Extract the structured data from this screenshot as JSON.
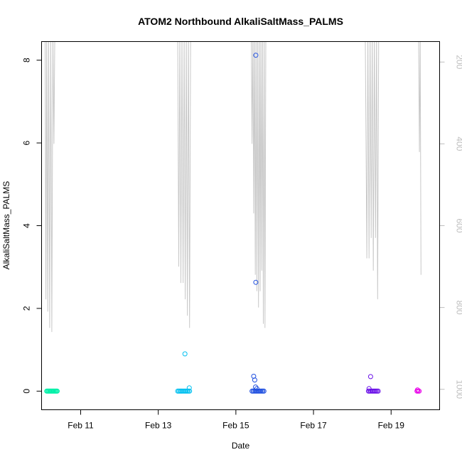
{
  "chart_data": {
    "type": "scatter",
    "title": "ATOM2 Northbound AlkaliSaltMass_PALMS",
    "xlabel": "Date",
    "ylabel": "AlkaliSaltMass_PALMS",
    "x_ticks": [
      "Feb 11",
      "Feb 13",
      "Feb 15",
      "Feb 17",
      "Feb 19"
    ],
    "y_ticks": [
      "0",
      "2",
      "4",
      "6",
      "8"
    ],
    "y2_ticks": [
      "200",
      "400",
      "600",
      "800",
      "1000"
    ],
    "xlim": [
      "Feb 9 23:50",
      "Feb 20 06:00"
    ],
    "ylim": [
      -0.45,
      8.45
    ],
    "y2lim": [
      1050,
      150
    ],
    "y2_reversed": true,
    "y2_series_color": "#c8c8c8",
    "point_colors": {
      "flight1": "#00f0a8",
      "flight2": "#00c0f0",
      "flight3": "#2050e0",
      "flight4": "#6a10e8",
      "flight5": "#e800e8"
    },
    "series": [
      {
        "color_key": "flight1",
        "points": [
          [
            "Feb 10 03:00",
            0
          ],
          [
            "Feb 10 03:30",
            0
          ],
          [
            "Feb 10 04:00",
            0
          ],
          [
            "Feb 10 04:30",
            0
          ],
          [
            "Feb 10 05:00",
            0
          ],
          [
            "Feb 10 05:30",
            0
          ],
          [
            "Feb 10 06:00",
            0
          ],
          [
            "Feb 10 06:30",
            0
          ],
          [
            "Feb 10 07:00",
            0
          ],
          [
            "Feb 10 07:30",
            0
          ],
          [
            "Feb 10 08:00",
            0
          ],
          [
            "Feb 10 08:30",
            0
          ],
          [
            "Feb 10 09:00",
            0
          ],
          [
            "Feb 10 09:30",
            0
          ]
        ]
      },
      {
        "color_key": "flight2",
        "points": [
          [
            "Feb 13 12:00",
            0
          ],
          [
            "Feb 13 12:40",
            0
          ],
          [
            "Feb 13 13:20",
            0
          ],
          [
            "Feb 13 14:00",
            0
          ],
          [
            "Feb 13 14:40",
            0
          ],
          [
            "Feb 13 15:20",
            0
          ],
          [
            "Feb 13 16:00",
            0
          ],
          [
            "Feb 13 16:40",
            0
          ],
          [
            "Feb 13 17:20",
            0
          ],
          [
            "Feb 13 18:00",
            0
          ],
          [
            "Feb 13 18:40",
            0
          ],
          [
            "Feb 13 19:20",
            0
          ],
          [
            "Feb 13 16:30",
            0.9
          ],
          [
            "Feb 13 19:10",
            0.08
          ]
        ]
      },
      {
        "color_key": "flight3",
        "points": [
          [
            "Feb 15 10:00",
            0
          ],
          [
            "Feb 15 10:40",
            0
          ],
          [
            "Feb 15 11:20",
            0
          ],
          [
            "Feb 15 12:00",
            0
          ],
          [
            "Feb 15 12:40",
            0
          ],
          [
            "Feb 15 13:20",
            0
          ],
          [
            "Feb 15 14:00",
            0
          ],
          [
            "Feb 15 14:40",
            0
          ],
          [
            "Feb 15 15:20",
            0
          ],
          [
            "Feb 15 16:00",
            0
          ],
          [
            "Feb 15 16:40",
            0
          ],
          [
            "Feb 15 17:20",
            0
          ],
          [
            "Feb 15 11:00",
            0.36
          ],
          [
            "Feb 15 11:40",
            0.27
          ],
          [
            "Feb 15 12:10",
            0.1
          ],
          [
            "Feb 15 13:00",
            0.06
          ],
          [
            "Feb 15 12:20",
            8.12
          ],
          [
            "Feb 15 12:20",
            2.63
          ]
        ]
      },
      {
        "color_key": "flight4",
        "points": [
          [
            "Feb 18 10:00",
            0
          ],
          [
            "Feb 18 10:40",
            0
          ],
          [
            "Feb 18 11:20",
            0
          ],
          [
            "Feb 18 12:00",
            0
          ],
          [
            "Feb 18 12:40",
            0
          ],
          [
            "Feb 18 13:20",
            0
          ],
          [
            "Feb 18 14:00",
            0
          ],
          [
            "Feb 18 14:40",
            0
          ],
          [
            "Feb 18 15:20",
            0
          ],
          [
            "Feb 18 16:00",
            0
          ],
          [
            "Feb 18 11:20",
            0.35
          ],
          [
            "Feb 18 10:20",
            0.06
          ]
        ]
      },
      {
        "color_key": "flight5",
        "points": [
          [
            "Feb 19 16:00",
            0
          ],
          [
            "Feb 19 16:40",
            0
          ],
          [
            "Feb 19 17:20",
            0
          ],
          [
            "Feb 19 16:20",
            0.03
          ]
        ]
      }
    ],
    "y2_series": {
      "times": [
        "Feb 10 02:00",
        "Feb 10 02:30",
        "Feb 10 03:00",
        "Feb 10 03:40",
        "Feb 10 04:10",
        "Feb 10 04:50",
        "Feb 10 05:30",
        "Feb 10 06:10",
        "Feb 10 06:50",
        "Feb 10 07:30",
        "Feb 10 08:00",
        "Feb 10 08:40",
        "Feb 10 09:20",
        "Feb 10 10:00",
        "Feb 13 12:00",
        "Feb 13 12:40",
        "Feb 13 13:20",
        "Feb 13 14:00",
        "Feb 13 14:40",
        "Feb 13 15:20",
        "Feb 13 16:00",
        "Feb 13 16:40",
        "Feb 13 17:20",
        "Feb 13 18:00",
        "Feb 13 18:40",
        "Feb 13 19:20",
        "Feb 13 20:00",
        "Feb 14 08:00",
        "Feb 15 09:30",
        "Feb 15 10:00",
        "Feb 15 10:30",
        "Feb 15 11:00",
        "Feb 15 11:30",
        "Feb 15 12:00",
        "Feb 15 12:30",
        "Feb 15 13:00",
        "Feb 15 13:30",
        "Feb 15 14:00",
        "Feb 15 14:30",
        "Feb 15 15:00",
        "Feb 15 15:30",
        "Feb 15 16:00",
        "Feb 15 16:30",
        "Feb 15 17:00",
        "Feb 15 17:30",
        "Feb 15 18:00",
        "Feb 15 18:30",
        "Feb 15 19:00",
        "Feb 18 08:00",
        "Feb 18 09:00",
        "Feb 18 09:40",
        "Feb 18 10:20",
        "Feb 18 11:00",
        "Feb 18 11:40",
        "Feb 18 12:20",
        "Feb 18 13:00",
        "Feb 18 13:40",
        "Feb 18 14:20",
        "Feb 18 15:00",
        "Feb 18 15:40",
        "Feb 18 16:20",
        "Feb 18 17:00",
        "Feb 18 22:00",
        "Feb 19 17:00",
        "Feb 19 17:30",
        "Feb 19 18:00",
        "Feb 19 18:30"
      ],
      "values": [
        130,
        780,
        130,
        810,
        130,
        850,
        130,
        860,
        130,
        400,
        130,
        130,
        130,
        130,
        130,
        700,
        130,
        740,
        130,
        740,
        130,
        780,
        130,
        820,
        130,
        850,
        130,
        130,
        130,
        400,
        130,
        570,
        130,
        720,
        130,
        760,
        130,
        800,
        130,
        760,
        130,
        710,
        130,
        840,
        130,
        850,
        130,
        130,
        130,
        680,
        130,
        680,
        130,
        630,
        130,
        710,
        130,
        630,
        130,
        780,
        130,
        130,
        130,
        130,
        420,
        130,
        720
      ]
    }
  }
}
